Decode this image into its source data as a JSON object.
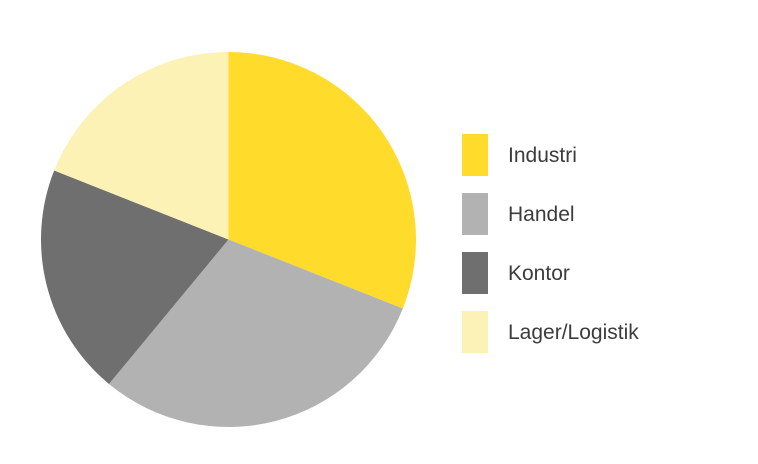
{
  "page": {
    "background_color": "#ffffff",
    "legend_text_color": "#3C3C3B"
  },
  "chart_data": {
    "type": "pie",
    "title": "",
    "categories": [
      "Industri",
      "Handel",
      "Kontor",
      "Lager/Logistik"
    ],
    "values": [
      31,
      30,
      20,
      19
    ],
    "values_estimated_from_angles": true,
    "unit": "percent",
    "colors": [
      "#FFDB2C",
      "#B2B2B2",
      "#706F6F",
      "#FCF2B6"
    ],
    "start_angle_deg": 0,
    "direction": "clockwise",
    "legend_position": "right",
    "data_labels_shown": false
  }
}
